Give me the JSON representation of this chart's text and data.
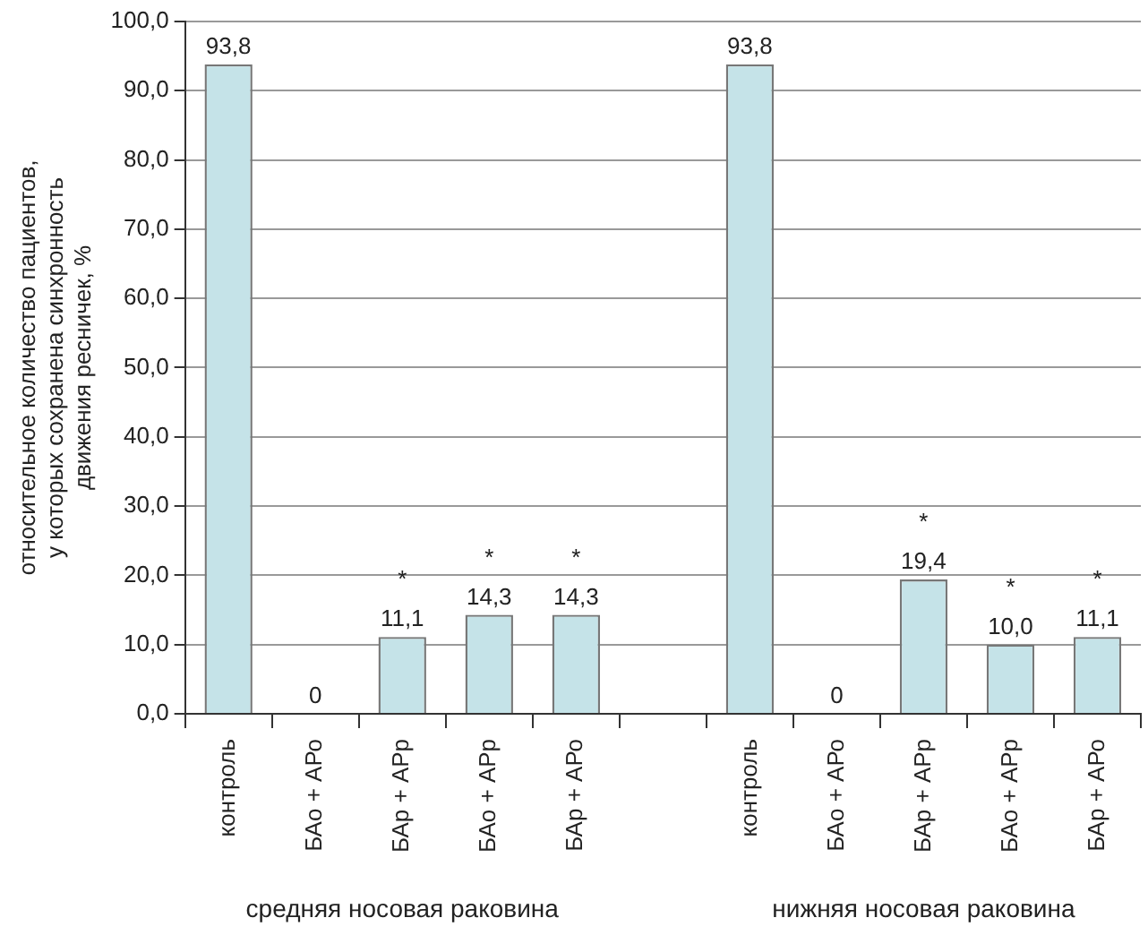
{
  "chart_data": {
    "type": "bar",
    "ylabel": "относительное количество пациентов,\nу которых сохранена синхронность\nдвижения ресничек, %",
    "categories": [
      "контроль",
      "БАо + АРо",
      "БАр + АРр",
      "БАо + АРр",
      "БАр + АРо",
      null,
      "контроль",
      "БАо + АРо",
      "БАр + АРр",
      "БАо + АРр",
      "БАр + АРо"
    ],
    "values": [
      93.8,
      0,
      11.1,
      14.3,
      14.3,
      null,
      93.8,
      0,
      19.4,
      10.0,
      11.1
    ],
    "value_labels": [
      "93,8",
      "0",
      "*\n11,1",
      "*\n14,3",
      "*\n14,3",
      null,
      "93,8",
      "0",
      "*\n19,4",
      "*\n10,0",
      "*\n11,1"
    ],
    "color": "#c5e3e8",
    "ylim": [
      0,
      100
    ],
    "yticks": [
      {
        "value": 0,
        "label": "0,0"
      },
      {
        "value": 10,
        "label": "10,0"
      },
      {
        "value": 20,
        "label": "20,0"
      },
      {
        "value": 30,
        "label": "30,0"
      },
      {
        "value": 40,
        "label": "40,0"
      },
      {
        "value": 50,
        "label": "50,0"
      },
      {
        "value": 60,
        "label": "60,0"
      },
      {
        "value": 70,
        "label": "70,0"
      },
      {
        "value": 80,
        "label": "80,0"
      },
      {
        "value": 90,
        "label": "90,0"
      },
      {
        "value": 100,
        "label": "100,0"
      }
    ],
    "grid": "y",
    "annotations": [
      "средняя носовая раковина",
      "нижняя носовая раковина"
    ]
  }
}
